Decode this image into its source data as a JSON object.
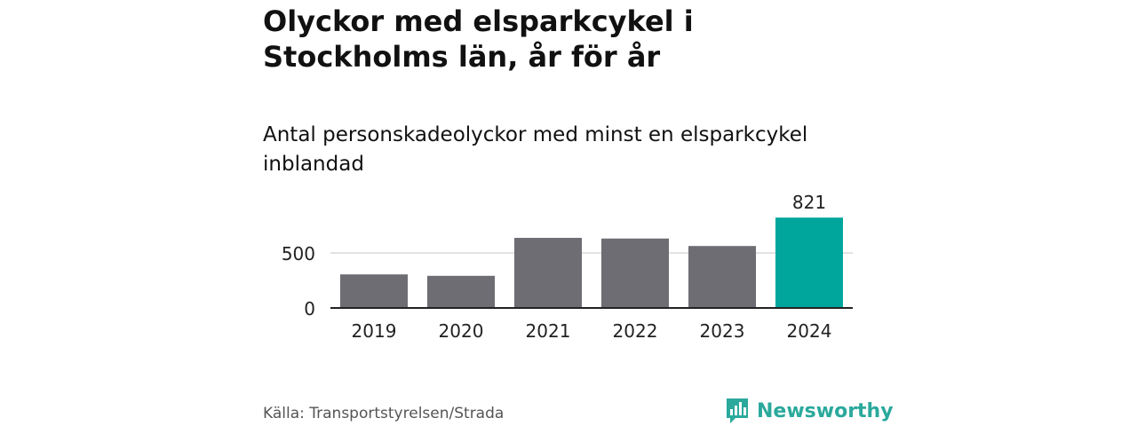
{
  "header": {
    "title": "Olyckor med elsparkcykel i Stockholms län, år för år",
    "subtitle": "Antal personskadeolyckor med minst en elsparkcykel inblandad"
  },
  "footer": {
    "source": "Källa: Transportstyrelsen/Strada",
    "brand": "Newsworthy"
  },
  "colors": {
    "bar": "#6e6d73",
    "highlight": "#00a69c",
    "brand": "#2aa99c",
    "grid": "#d9d9d9",
    "axis": "#222222"
  },
  "chart_data": {
    "type": "bar",
    "categories": [
      "2019",
      "2020",
      "2021",
      "2022",
      "2023",
      "2024"
    ],
    "values": [
      305,
      292,
      637,
      631,
      563,
      821
    ],
    "highlight_index": 5,
    "data_labels": {
      "2024": "821"
    },
    "yticks": [
      0,
      500
    ],
    "ylim": [
      0,
      850
    ],
    "grid": true,
    "title": "Olyckor med elsparkcykel i Stockholms län, år för år",
    "subtitle": "Antal personskadeolyckor med minst en elsparkcykel inblandad"
  }
}
